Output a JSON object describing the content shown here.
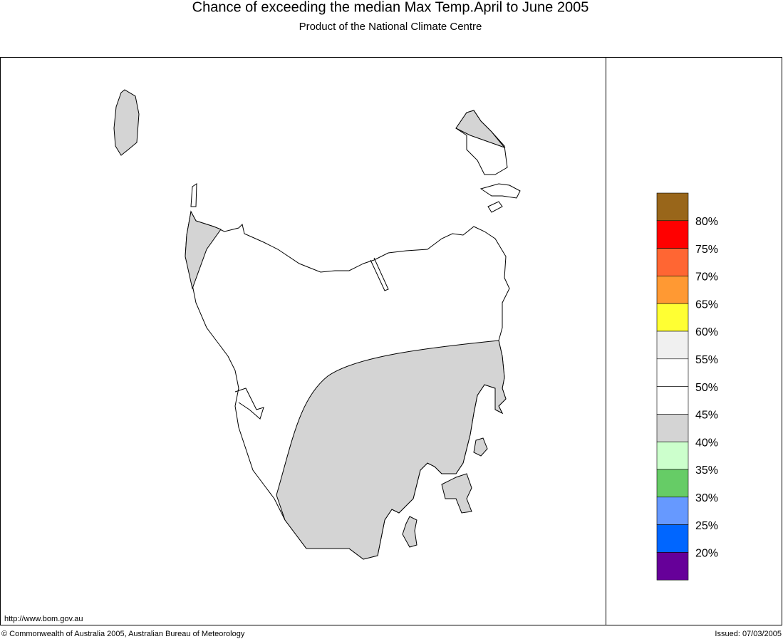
{
  "header": {
    "title": "Chance of exceeding the median Max Temp.April to June 2005",
    "subtitle": "Product of the National Climate Centre"
  },
  "legend": {
    "colors": [
      "#99661a",
      "#ff0000",
      "#ff6633",
      "#ff9933",
      "#ffff33",
      "#f0f0f0",
      "#ffffff",
      "#ffffff",
      "#d4d4d4",
      "#ccffcc",
      "#66cc66",
      "#6699ff",
      "#0066ff",
      "#660099"
    ],
    "labels": [
      "80%",
      "75%",
      "70%",
      "65%",
      "60%",
      "55%",
      "50%",
      "45%",
      "40%",
      "35%",
      "30%",
      "25%",
      "20%"
    ]
  },
  "footer": {
    "url": "http://www.bom.gov.au",
    "copyright": "© Commonwealth of Australia 2005, Australian Bureau of Meteorology",
    "issued": "Issued: 07/03/2005"
  }
}
